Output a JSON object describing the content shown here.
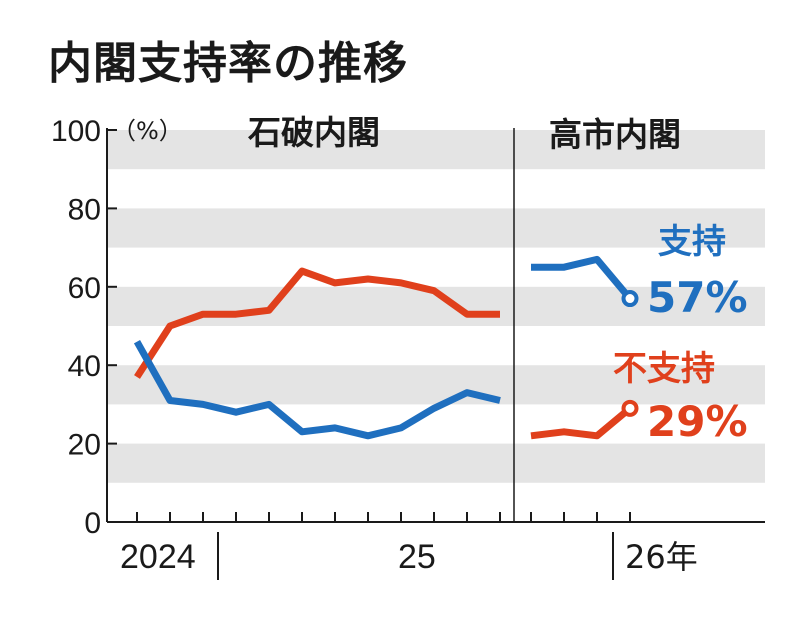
{
  "title": "内閣支持率の推移",
  "colors": {
    "support": "#1f6fbf",
    "nonsupport": "#e0401c",
    "band": "#e4e4e4",
    "axis": "#1a1a1a"
  },
  "chart_data": {
    "type": "line",
    "title": "内閣支持率の推移",
    "ylabel": "（%）",
    "ylim": [
      0,
      100
    ],
    "yticks": [
      0,
      20,
      40,
      60,
      80,
      100
    ],
    "xlabels": {
      "y2024": "2024",
      "y25": "25",
      "y26": "26年"
    },
    "cabinets": [
      {
        "name": "石破内閣"
      },
      {
        "name": "高市内閣"
      }
    ],
    "series": [
      {
        "name": "支持",
        "final_label": "57%",
        "segments": [
          [
            46,
            31,
            30,
            28,
            30,
            23,
            24,
            22,
            24,
            29,
            33,
            31
          ],
          [
            65,
            65,
            67,
            57
          ]
        ]
      },
      {
        "name": "不支持",
        "final_label": "29%",
        "segments": [
          [
            37,
            50,
            53,
            53,
            54,
            64,
            61,
            62,
            61,
            59,
            53,
            53
          ],
          [
            22,
            23,
            22,
            29
          ]
        ]
      }
    ]
  }
}
